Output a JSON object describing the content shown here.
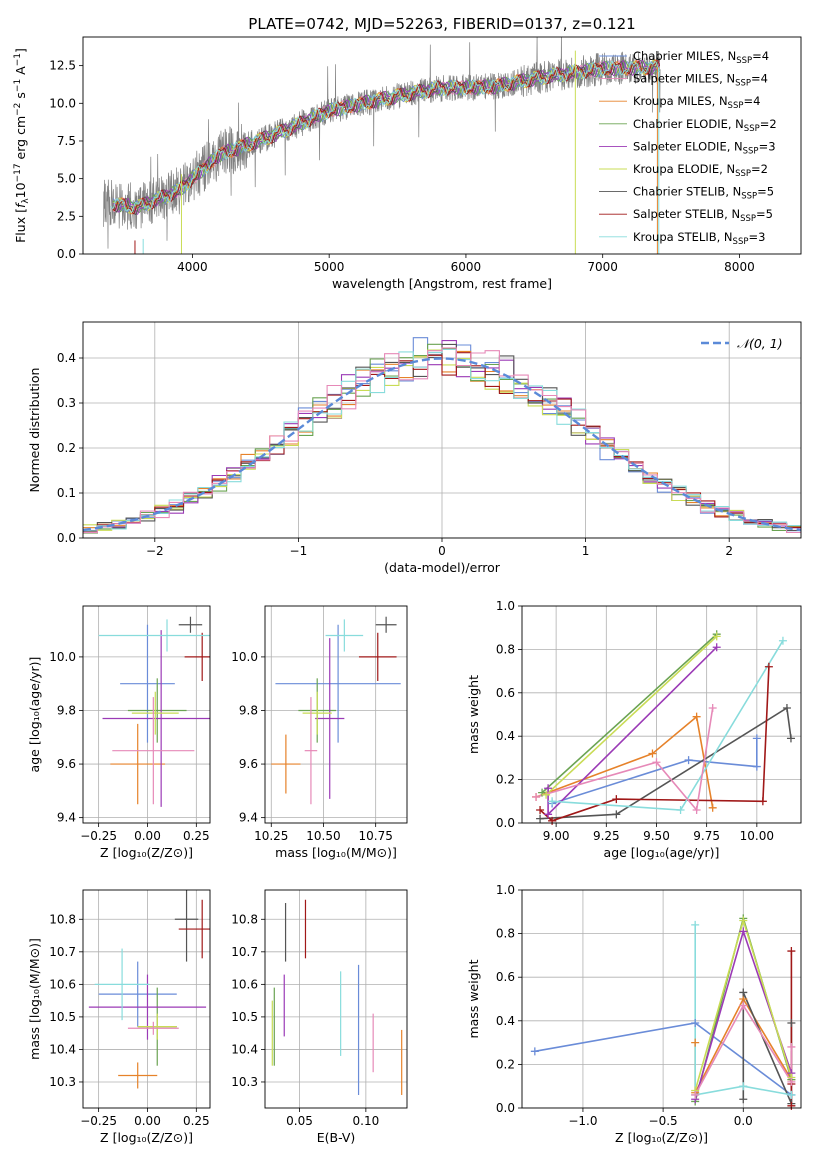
{
  "figure": {
    "title": "PLATE=0742, MJD=52263, FIBERID=0137, z=0.121"
  },
  "model_colors": [
    "#6a8cd8",
    "#e6822a",
    "#6aa352",
    "#9b3ab6",
    "#c9dc55",
    "#555555",
    "#a01818",
    "#88dcdc",
    "#e689b8"
  ],
  "chart_data": [
    {
      "id": "spectrum",
      "type": "line",
      "xlabel": "wavelength [Angstrom, rest frame]",
      "xlim": [
        3200,
        8450
      ],
      "ylim": [
        0,
        14.4
      ],
      "xticks": [
        4000,
        5000,
        6000,
        7000,
        8000
      ],
      "yticks": [
        0.0,
        2.5,
        5.0,
        7.5,
        10.0,
        12.5
      ],
      "grid": false,
      "legend_position": "upper-right",
      "data_series": {
        "color": "#808080",
        "x_range": [
          3350,
          7420
        ],
        "continuum_points": [
          [
            3350,
            3.4
          ],
          [
            3600,
            3.1
          ],
          [
            3900,
            4.2
          ],
          [
            4200,
            6.6
          ],
          [
            4600,
            7.9
          ],
          [
            5000,
            9.5
          ],
          [
            5400,
            10.3
          ],
          [
            5800,
            11.0
          ],
          [
            6200,
            11.1
          ],
          [
            6600,
            11.8
          ],
          [
            7000,
            12.3
          ],
          [
            7420,
            12.4
          ]
        ]
      },
      "legend": [
        {
          "label": "Chabrier MILES, N",
          "sub": "SSP",
          "suffix": "=4",
          "color": "#6a8cd8"
        },
        {
          "label": "Salpeter MILES, N",
          "sub": "SSP",
          "suffix": "=4",
          "color": "#e689b8"
        },
        {
          "label": "Kroupa MILES, N",
          "sub": "SSP",
          "suffix": "=4",
          "color": "#e6822a"
        },
        {
          "label": "Chabrier ELODIE, N",
          "sub": "SSP",
          "suffix": "=2",
          "color": "#6aa352"
        },
        {
          "label": "Salpeter ELODIE, N",
          "sub": "SSP",
          "suffix": "=3",
          "color": "#9b3ab6"
        },
        {
          "label": "Kroupa ELODIE, N",
          "sub": "SSP",
          "suffix": "=2",
          "color": "#c9dc55"
        },
        {
          "label": "Chabrier STELIB, N",
          "sub": "SSP",
          "suffix": "=5",
          "color": "#555555"
        },
        {
          "label": "Salpeter STELIB, N",
          "sub": "SSP",
          "suffix": "=5",
          "color": "#a01818"
        },
        {
          "label": "Kroupa STELIB, N",
          "sub": "SSP",
          "suffix": "=3",
          "color": "#88dcdc"
        }
      ]
    },
    {
      "id": "residuals",
      "type": "histogram",
      "xlabel": "(data-model)/error",
      "ylabel": "Normed distribution",
      "xlim": [
        -2.5,
        2.5
      ],
      "ylim": [
        0,
        0.48
      ],
      "xticks": [
        -2,
        -1,
        0,
        1,
        2
      ],
      "yticks": [
        0.0,
        0.1,
        0.2,
        0.3,
        0.4
      ],
      "grid": true,
      "bin_width": 0.1,
      "legend_position": "upper-right",
      "gaussian": {
        "label": "𝒩(0, 1)",
        "color": "#5b8ad8",
        "mean": 0,
        "sigma": 1
      }
    },
    {
      "id": "age_vs_Z",
      "type": "errorbar",
      "xlabel": "Z [log₁₀(Z/Z⊙)]",
      "ylabel": "age  [log₁₀(age/yr)]",
      "xlim": [
        -0.33,
        0.32
      ],
      "ylim": [
        9.38,
        10.19
      ],
      "xticks": [
        -0.25,
        0.0,
        0.25
      ],
      "xticklabels": [
        "−0.25",
        "0.00",
        "0.25"
      ],
      "yticks": [
        9.4,
        9.6,
        9.8,
        10.0
      ],
      "grid": true,
      "points": [
        {
          "x": 0.0,
          "y": 9.9,
          "xerr": 0.14,
          "yerr": 0.22,
          "color": "#6a8cd8"
        },
        {
          "x": -0.05,
          "y": 9.6,
          "xerr": 0.14,
          "yerr": 0.15,
          "color": "#e6822a"
        },
        {
          "x": 0.05,
          "y": 9.8,
          "xerr": 0.15,
          "yerr": 0.12,
          "color": "#6aa352"
        },
        {
          "x": 0.07,
          "y": 9.77,
          "xerr": 0.3,
          "yerr": 0.33,
          "color": "#9b3ab6"
        },
        {
          "x": 0.04,
          "y": 9.79,
          "xerr": 0.12,
          "yerr": 0.08,
          "color": "#c9dc55"
        },
        {
          "x": 0.22,
          "y": 10.12,
          "xerr": 0.06,
          "yerr": 0.03,
          "color": "#555555"
        },
        {
          "x": 0.28,
          "y": 10.0,
          "xerr": 0.09,
          "yerr": 0.09,
          "color": "#a01818"
        },
        {
          "x": 0.1,
          "y": 10.08,
          "xerr": 0.35,
          "yerr": 0.06,
          "color": "#88dcdc"
        },
        {
          "x": 0.03,
          "y": 9.65,
          "xerr": 0.21,
          "yerr": 0.2,
          "color": "#e689b8"
        }
      ]
    },
    {
      "id": "age_vs_mass",
      "type": "errorbar",
      "xlabel": "mass [log₁₀(M/M⊙)]",
      "ylabel": "",
      "xlim": [
        10.22,
        10.9
      ],
      "ylim": [
        9.38,
        10.19
      ],
      "xticks": [
        10.25,
        10.5,
        10.75
      ],
      "xticklabels": [
        "10.25",
        "10.50",
        "10.75"
      ],
      "yticks": [
        9.4,
        9.6,
        9.8,
        10.0
      ],
      "grid": true,
      "points": [
        {
          "x": 10.57,
          "y": 9.9,
          "xerr": 0.3,
          "yerr": 0.22,
          "color": "#6a8cd8"
        },
        {
          "x": 10.32,
          "y": 9.6,
          "xerr": 0.07,
          "yerr": 0.11,
          "color": "#e6822a"
        },
        {
          "x": 10.47,
          "y": 9.8,
          "xerr": 0.09,
          "yerr": 0.12,
          "color": "#6aa352"
        },
        {
          "x": 10.53,
          "y": 9.77,
          "xerr": 0.07,
          "yerr": 0.3,
          "color": "#9b3ab6"
        },
        {
          "x": 10.47,
          "y": 9.79,
          "xerr": 0.07,
          "yerr": 0.08,
          "color": "#c9dc55"
        },
        {
          "x": 10.8,
          "y": 10.12,
          "xerr": 0.05,
          "yerr": 0.03,
          "color": "#555555"
        },
        {
          "x": 10.76,
          "y": 10.0,
          "xerr": 0.09,
          "yerr": 0.09,
          "color": "#a01818"
        },
        {
          "x": 10.6,
          "y": 10.08,
          "xerr": 0.09,
          "yerr": 0.06,
          "color": "#88dcdc"
        },
        {
          "x": 10.44,
          "y": 9.65,
          "xerr": 0.03,
          "yerr": 0.2,
          "color": "#e689b8"
        }
      ]
    },
    {
      "id": "weight_vs_age",
      "type": "line",
      "xlabel": "age  [log₁₀(age/yr)]",
      "ylabel": "mass weight",
      "xlim": [
        8.83,
        10.22
      ],
      "ylim": [
        0,
        1.0
      ],
      "xticks": [
        9.0,
        9.25,
        9.5,
        9.75,
        10.0
      ],
      "xticklabels": [
        "9.00",
        "9.25",
        "9.50",
        "9.75",
        "10.00"
      ],
      "yticks": [
        0.0,
        0.2,
        0.4,
        0.6,
        0.8,
        1.0
      ],
      "grid": true,
      "series": [
        {
          "color": "#6a8cd8",
          "points": [
            [
              8.98,
              0.09
            ],
            [
              9.66,
              0.29
            ],
            [
              10.0,
              0.26
            ],
            [
              10.0,
              0.39
            ]
          ]
        },
        {
          "color": "#e6822a",
          "points": [
            [
              8.9,
              0.12
            ],
            [
              9.48,
              0.32
            ],
            [
              9.7,
              0.49
            ],
            [
              9.78,
              0.07
            ]
          ]
        },
        {
          "color": "#6aa352",
          "points": [
            [
              8.93,
              0.14
            ],
            [
              9.8,
              0.87
            ]
          ]
        },
        {
          "color": "#9b3ab6",
          "points": [
            [
              8.96,
              0.16
            ],
            [
              8.96,
              0.04
            ],
            [
              9.8,
              0.81
            ]
          ]
        },
        {
          "color": "#c9dc55",
          "points": [
            [
              8.95,
              0.13
            ],
            [
              9.8,
              0.86
            ]
          ]
        },
        {
          "color": "#555555",
          "points": [
            [
              8.92,
              0.02
            ],
            [
              9.3,
              0.04
            ],
            [
              10.15,
              0.53
            ],
            [
              10.17,
              0.39
            ]
          ]
        },
        {
          "color": "#a01818",
          "points": [
            [
              8.92,
              0.06
            ],
            [
              8.98,
              0.01
            ],
            [
              9.3,
              0.11
            ],
            [
              10.03,
              0.1
            ],
            [
              10.06,
              0.72
            ]
          ]
        },
        {
          "color": "#88dcdc",
          "points": [
            [
              8.98,
              0.1
            ],
            [
              9.62,
              0.06
            ],
            [
              10.13,
              0.84
            ]
          ]
        },
        {
          "color": "#e689b8",
          "points": [
            [
              8.9,
              0.12
            ],
            [
              9.5,
              0.28
            ],
            [
              9.7,
              0.06
            ],
            [
              9.78,
              0.53
            ]
          ]
        }
      ]
    },
    {
      "id": "mass_vs_Z",
      "type": "errorbar",
      "xlabel": "Z [log₁₀(Z/Z⊙)]",
      "ylabel": "mass [log₁₀(M/M⊙)]",
      "xlim": [
        -0.33,
        0.32
      ],
      "ylim": [
        10.22,
        10.89
      ],
      "xticks": [
        -0.25,
        0.0,
        0.25
      ],
      "xticklabels": [
        "−0.25",
        "0.00",
        "0.25"
      ],
      "yticks": [
        10.3,
        10.4,
        10.5,
        10.6,
        10.7,
        10.8
      ],
      "grid": true,
      "points": [
        {
          "x": -0.05,
          "y": 10.57,
          "xerr": 0.2,
          "yerr": 0.1,
          "color": "#6a8cd8"
        },
        {
          "x": -0.05,
          "y": 10.32,
          "xerr": 0.1,
          "yerr": 0.04,
          "color": "#e6822a"
        },
        {
          "x": 0.05,
          "y": 10.47,
          "xerr": 0.1,
          "yerr": 0.12,
          "color": "#6aa352"
        },
        {
          "x": 0.0,
          "y": 10.53,
          "xerr": 0.3,
          "yerr": 0.1,
          "color": "#9b3ab6"
        },
        {
          "x": 0.05,
          "y": 10.47,
          "xerr": 0.1,
          "yerr": 0.04,
          "color": "#c9dc55"
        },
        {
          "x": 0.2,
          "y": 10.8,
          "xerr": 0.06,
          "yerr": 0.13,
          "color": "#555555"
        },
        {
          "x": 0.28,
          "y": 10.77,
          "xerr": 0.12,
          "yerr": 0.09,
          "color": "#a01818"
        },
        {
          "x": -0.13,
          "y": 10.6,
          "xerr": 0.14,
          "yerr": 0.11,
          "color": "#88dcdc"
        },
        {
          "x": 0.03,
          "y": 10.465,
          "xerr": 0.13,
          "yerr": 0.02,
          "color": "#e689b8"
        }
      ]
    },
    {
      "id": "mass_vs_ebv",
      "type": "errorbar",
      "xlabel": "E(B-V)",
      "ylabel": "",
      "xlim": [
        0.024,
        0.131
      ],
      "ylim": [
        10.22,
        10.89
      ],
      "xticks": [
        0.05,
        0.1
      ],
      "xticklabels": [
        "0.05",
        "0.10"
      ],
      "yticks": [
        10.3,
        10.4,
        10.5,
        10.6,
        10.7,
        10.8
      ],
      "grid": true,
      "points": [
        {
          "x": 0.0945,
          "y": 10.46,
          "yerr": 0.2,
          "color": "#6a8cd8"
        },
        {
          "x": 0.127,
          "y": 10.36,
          "yerr": 0.1,
          "color": "#e6822a"
        },
        {
          "x": 0.031,
          "y": 10.47,
          "yerr": 0.12,
          "color": "#6aa352"
        },
        {
          "x": 0.0385,
          "y": 10.535,
          "yerr": 0.095,
          "color": "#9b3ab6"
        },
        {
          "x": 0.0295,
          "y": 10.45,
          "yerr": 0.1,
          "color": "#c9dc55"
        },
        {
          "x": 0.0395,
          "y": 10.76,
          "yerr": 0.09,
          "color": "#555555"
        },
        {
          "x": 0.0545,
          "y": 10.77,
          "yerr": 0.09,
          "color": "#a01818"
        },
        {
          "x": 0.081,
          "y": 10.51,
          "yerr": 0.13,
          "color": "#88dcdc"
        },
        {
          "x": 0.1055,
          "y": 10.42,
          "yerr": 0.09,
          "color": "#e689b8"
        }
      ]
    },
    {
      "id": "weight_vs_Z",
      "type": "line",
      "xlabel": "Z [log₁₀(Z/Z⊙)]",
      "ylabel": "mass weight",
      "xlim": [
        -1.38,
        0.36
      ],
      "ylim": [
        0,
        1.0
      ],
      "xticks": [
        -1.0,
        -0.5,
        0.0
      ],
      "xticklabels": [
        "−1.0",
        "−0.5",
        "0.0"
      ],
      "yticks": [
        0.0,
        0.2,
        0.4,
        0.6,
        0.8,
        1.0
      ],
      "grid": true,
      "series": [
        {
          "color": "#6a8cd8",
          "points": [
            [
              -1.3,
              0.26
            ],
            [
              -0.3,
              0.39
            ],
            [
              0.3,
              0.06
            ]
          ]
        },
        {
          "color": "#e6822a",
          "points": [
            [
              -0.3,
              0.3
            ],
            [
              -0.3,
              0.07
            ],
            [
              0.0,
              0.5
            ],
            [
              0.3,
              0.13
            ]
          ]
        },
        {
          "color": "#6aa352",
          "points": [
            [
              -0.3,
              0.03
            ],
            [
              0.0,
              0.87
            ],
            [
              0.3,
              0.13
            ]
          ]
        },
        {
          "color": "#9b3ab6",
          "points": [
            [
              -0.3,
              0.04
            ],
            [
              0.0,
              0.81
            ],
            [
              0.3,
              0.16
            ]
          ]
        },
        {
          "color": "#c9dc55",
          "points": [
            [
              -0.3,
              0.08
            ],
            [
              0.0,
              0.86
            ],
            [
              0.3,
              0.14
            ]
          ]
        },
        {
          "color": "#555555",
          "points": [
            [
              0.0,
              0.04
            ],
            [
              0.0,
              0.53
            ],
            [
              0.3,
              0.02
            ],
            [
              0.3,
              0.39
            ]
          ]
        },
        {
          "color": "#a01818",
          "points": [
            [
              0.3,
              0.72
            ],
            [
              0.3,
              0.01
            ],
            [
              0.3,
              0.11
            ]
          ]
        },
        {
          "color": "#88dcdc",
          "points": [
            [
              -0.3,
              0.84
            ],
            [
              -0.3,
              0.06
            ],
            [
              0.0,
              0.1
            ],
            [
              0.3,
              0.06
            ]
          ]
        },
        {
          "color": "#e689b8",
          "points": [
            [
              -0.3,
              0.06
            ],
            [
              0.0,
              0.47
            ],
            [
              0.3,
              0.12
            ],
            [
              0.3,
              0.28
            ]
          ]
        }
      ]
    }
  ]
}
